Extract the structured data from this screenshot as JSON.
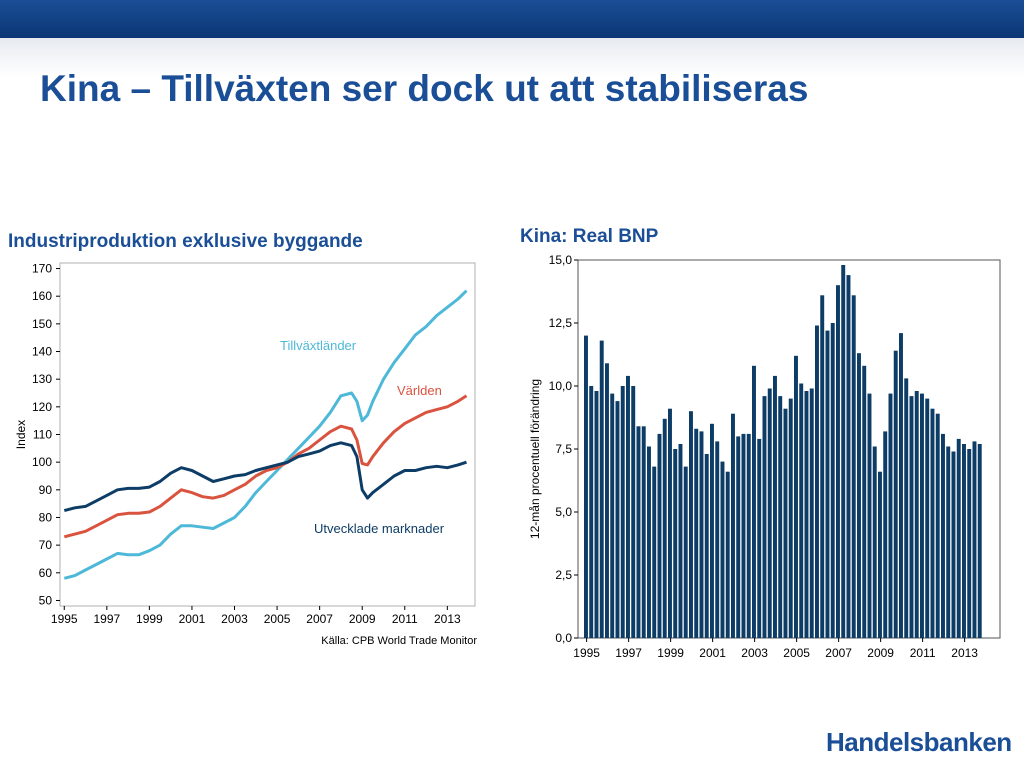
{
  "slide": {
    "title": "Kina – Tillväxten ser dock ut att stabiliseras",
    "logo": "Handelsbanken",
    "colors": {
      "brand": "#1a4e96"
    }
  },
  "chart_data": [
    {
      "type": "line",
      "title": "Industriproduktion exklusive byggande",
      "ylabel": "Index",
      "xlabel": "",
      "ylim": [
        48,
        172
      ],
      "xlim": [
        1994.8,
        2014.3
      ],
      "yticks": [
        50,
        60,
        70,
        80,
        90,
        100,
        110,
        120,
        130,
        140,
        150,
        160,
        170
      ],
      "xticks": [
        "1995",
        "1997",
        "1999",
        "2001",
        "2003",
        "2005",
        "2007",
        "2009",
        "2011",
        "2013"
      ],
      "grid": false,
      "source": "Källa: CPB World Trade Monitor",
      "series": [
        {
          "name": "Tillväxtländer",
          "color": "#4db8d8",
          "points": [
            [
              1995,
              58
            ],
            [
              1995.5,
              59
            ],
            [
              1996,
              61
            ],
            [
              1996.5,
              63
            ],
            [
              1997,
              65
            ],
            [
              1997.5,
              67
            ],
            [
              1998,
              66.5
            ],
            [
              1998.5,
              66.5
            ],
            [
              1999,
              68
            ],
            [
              1999.5,
              70
            ],
            [
              2000,
              74
            ],
            [
              2000.5,
              77
            ],
            [
              2001,
              77
            ],
            [
              2001.5,
              76.5
            ],
            [
              2002,
              76
            ],
            [
              2002.5,
              78
            ],
            [
              2003,
              80
            ],
            [
              2003.5,
              84
            ],
            [
              2004,
              89
            ],
            [
              2004.5,
              93
            ],
            [
              2005,
              97
            ],
            [
              2005.5,
              101
            ],
            [
              2006,
              105
            ],
            [
              2006.5,
              109
            ],
            [
              2007,
              113
            ],
            [
              2007.5,
              118
            ],
            [
              2008,
              124
            ],
            [
              2008.5,
              125
            ],
            [
              2008.75,
              122
            ],
            [
              2009,
              115
            ],
            [
              2009.25,
              117
            ],
            [
              2009.5,
              122
            ],
            [
              2010,
              130
            ],
            [
              2010.5,
              136
            ],
            [
              2011,
              141
            ],
            [
              2011.5,
              146
            ],
            [
              2012,
              149
            ],
            [
              2012.5,
              153
            ],
            [
              2013,
              156
            ],
            [
              2013.5,
              159
            ],
            [
              2013.9,
              162
            ]
          ]
        },
        {
          "name": "Världen",
          "color": "#d9533e",
          "points": [
            [
              1995,
              73
            ],
            [
              1995.5,
              74
            ],
            [
              1996,
              75
            ],
            [
              1996.5,
              77
            ],
            [
              1997,
              79
            ],
            [
              1997.5,
              81
            ],
            [
              1998,
              81.5
            ],
            [
              1998.5,
              81.5
            ],
            [
              1999,
              82
            ],
            [
              1999.5,
              84
            ],
            [
              2000,
              87
            ],
            [
              2000.5,
              90
            ],
            [
              2001,
              89
            ],
            [
              2001.5,
              87.5
            ],
            [
              2002,
              87
            ],
            [
              2002.5,
              88
            ],
            [
              2003,
              90
            ],
            [
              2003.5,
              92
            ],
            [
              2004,
              95
            ],
            [
              2004.5,
              97
            ],
            [
              2005,
              98
            ],
            [
              2005.5,
              100
            ],
            [
              2006,
              103
            ],
            [
              2006.5,
              105
            ],
            [
              2007,
              108
            ],
            [
              2007.5,
              111
            ],
            [
              2008,
              113
            ],
            [
              2008.5,
              112
            ],
            [
              2008.75,
              108
            ],
            [
              2009,
              99.5
            ],
            [
              2009.25,
              99
            ],
            [
              2009.5,
              102
            ],
            [
              2010,
              107
            ],
            [
              2010.5,
              111
            ],
            [
              2011,
              114
            ],
            [
              2011.5,
              116
            ],
            [
              2012,
              118
            ],
            [
              2012.5,
              119
            ],
            [
              2013,
              120
            ],
            [
              2013.5,
              122
            ],
            [
              2013.9,
              124
            ]
          ]
        },
        {
          "name": "Utvecklade marknader",
          "color": "#0d3d66",
          "points": [
            [
              1995,
              82.5
            ],
            [
              1995.5,
              83.5
            ],
            [
              1996,
              84
            ],
            [
              1996.5,
              86
            ],
            [
              1997,
              88
            ],
            [
              1997.5,
              90
            ],
            [
              1998,
              90.5
            ],
            [
              1998.5,
              90.5
            ],
            [
              1999,
              91
            ],
            [
              1999.5,
              93
            ],
            [
              2000,
              96
            ],
            [
              2000.5,
              98
            ],
            [
              2001,
              97
            ],
            [
              2001.5,
              95
            ],
            [
              2002,
              93
            ],
            [
              2002.5,
              94
            ],
            [
              2003,
              95
            ],
            [
              2003.5,
              95.5
            ],
            [
              2004,
              97
            ],
            [
              2004.5,
              98
            ],
            [
              2005,
              99
            ],
            [
              2005.5,
              100
            ],
            [
              2006,
              102
            ],
            [
              2006.5,
              103
            ],
            [
              2007,
              104
            ],
            [
              2007.5,
              106
            ],
            [
              2008,
              107
            ],
            [
              2008.5,
              106
            ],
            [
              2008.75,
              102
            ],
            [
              2009,
              90
            ],
            [
              2009.25,
              87
            ],
            [
              2009.5,
              89
            ],
            [
              2010,
              92
            ],
            [
              2010.5,
              95
            ],
            [
              2011,
              97
            ],
            [
              2011.5,
              97
            ],
            [
              2012,
              98
            ],
            [
              2012.5,
              98.5
            ],
            [
              2013,
              98
            ],
            [
              2013.5,
              99
            ],
            [
              2013.9,
              100
            ]
          ]
        }
      ]
    },
    {
      "type": "bar",
      "title": "Kina: Real BNP",
      "ylabel": "12-mån procentuell förändring",
      "xlabel": "",
      "ylim": [
        0,
        15
      ],
      "yticks": [
        "0,0",
        "2,5",
        "5,0",
        "7,5",
        "10,0",
        "12,5",
        "15,0"
      ],
      "xticks": [
        "1995",
        "1997",
        "1999",
        "2001",
        "2003",
        "2005",
        "2007",
        "2009",
        "2011",
        "2013"
      ],
      "start_year": 1995,
      "bars_per_year": 4,
      "color": "#0d3d66",
      "values": [
        12.0,
        10.0,
        9.8,
        11.8,
        10.9,
        9.7,
        9.4,
        10.0,
        10.4,
        10.0,
        8.4,
        8.4,
        7.6,
        6.8,
        8.1,
        8.7,
        9.1,
        7.5,
        7.7,
        6.8,
        9.0,
        8.3,
        8.2,
        7.3,
        8.5,
        7.8,
        7.0,
        6.6,
        8.9,
        8.0,
        8.1,
        8.1,
        10.8,
        7.9,
        9.6,
        9.9,
        10.4,
        9.6,
        9.1,
        9.5,
        11.2,
        10.1,
        9.8,
        9.9,
        12.4,
        13.6,
        12.2,
        12.5,
        14.0,
        14.8,
        14.4,
        13.6,
        11.3,
        10.8,
        9.7,
        7.6,
        6.6,
        8.2,
        9.7,
        11.4,
        12.1,
        10.3,
        9.6,
        9.8,
        9.7,
        9.5,
        9.1,
        8.9,
        8.1,
        7.6,
        7.4,
        7.9,
        7.7,
        7.5,
        7.8,
        7.7
      ]
    }
  ]
}
